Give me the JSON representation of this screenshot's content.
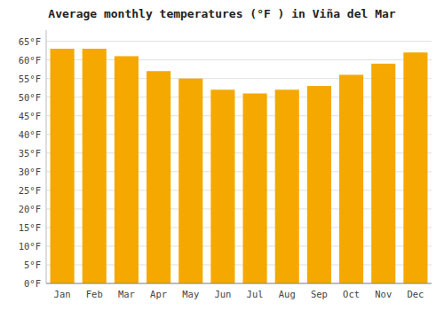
{
  "chart_data": {
    "type": "bar",
    "title": "Average monthly temperatures (°F ) in Viña del Mar",
    "categories": [
      "Jan",
      "Feb",
      "Mar",
      "Apr",
      "May",
      "Jun",
      "Jul",
      "Aug",
      "Sep",
      "Oct",
      "Nov",
      "Dec"
    ],
    "values": [
      63,
      63,
      61,
      57,
      55,
      52,
      51,
      52,
      53,
      56,
      59,
      62
    ],
    "color": "#F5A800",
    "ylim": [
      0,
      68
    ],
    "yticks": [
      {
        "value": 0,
        "label": "0°F"
      },
      {
        "value": 5,
        "label": "5°F"
      },
      {
        "value": 10,
        "label": "10°F"
      },
      {
        "value": 15,
        "label": "15°F"
      },
      {
        "value": 20,
        "label": "20°F"
      },
      {
        "value": 25,
        "label": "25°F"
      },
      {
        "value": 30,
        "label": "30°F"
      },
      {
        "value": 35,
        "label": "35°F"
      },
      {
        "value": 40,
        "label": "40°F"
      },
      {
        "value": 45,
        "label": "45°F"
      },
      {
        "value": 50,
        "label": "50°F"
      },
      {
        "value": 55,
        "label": "55°F"
      },
      {
        "value": 60,
        "label": "60°F"
      },
      {
        "value": 65,
        "label": "65°F"
      }
    ],
    "grid": true
  }
}
